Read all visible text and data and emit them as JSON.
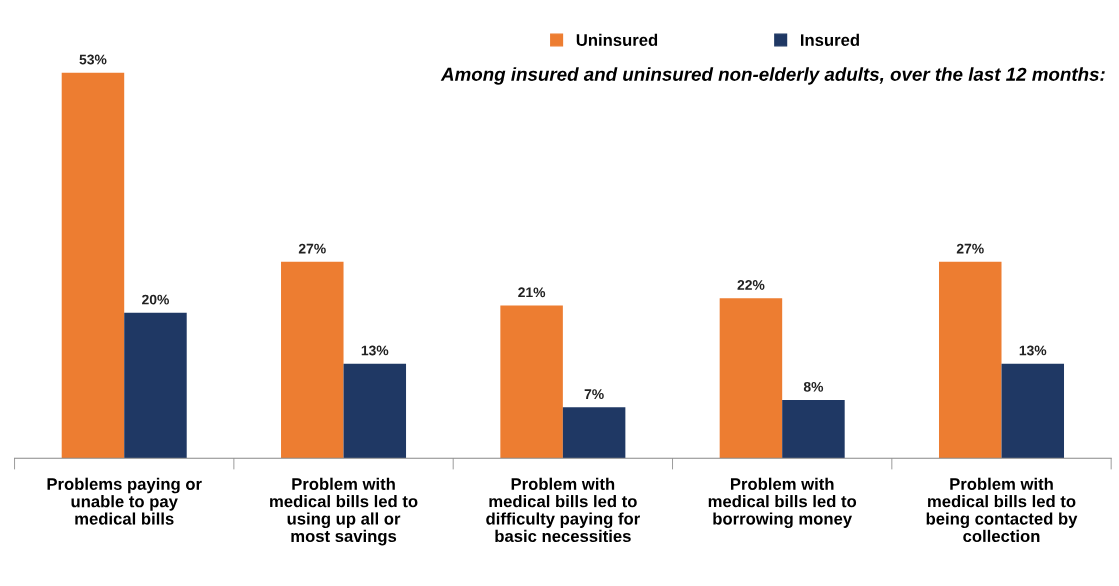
{
  "chart_data": {
    "type": "bar",
    "subtitle": "Among insured and uninsured non-elderly adults, over the last 12 months:",
    "categories": [
      "Problems paying or\nunable to pay\nmedical bills",
      "Problem with\nmedical bills led to\nusing up all or\nmost savings",
      "Problem with\nmedical bills led to\ndifficulty paying for\nbasic necessities",
      "Problem with\nmedical bills led to\nborrowing money",
      "Problem with\nmedical bills led to\nbeing contacted by\ncollection"
    ],
    "series": [
      {
        "name": "Uninsured",
        "color": "#ed7d31",
        "values": [
          53,
          27,
          21,
          22,
          27
        ],
        "value_labels": [
          "53%",
          "27%",
          "21%",
          "22%",
          "27%"
        ]
      },
      {
        "name": "Insured",
        "color": "#1f3864",
        "values": [
          20,
          13,
          7,
          8,
          13
        ],
        "value_labels": [
          "20%",
          "13%",
          "7%",
          "8%",
          "13%"
        ]
      }
    ],
    "legend": "top",
    "grid": false
  }
}
